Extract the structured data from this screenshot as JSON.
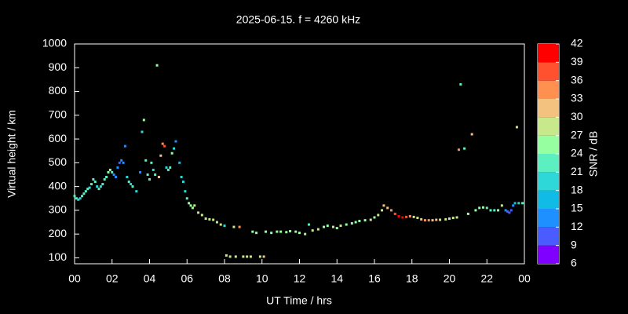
{
  "chart_data": {
    "type": "scatter",
    "title": "2025-06-15. f = 4260 kHz",
    "xlabel": "UT Time / hrs",
    "ylabel": "Virtual height / km",
    "xlim": [
      0,
      24
    ],
    "xticks": [
      {
        "value": 0,
        "label": "00"
      },
      {
        "value": 2,
        "label": "02"
      },
      {
        "value": 4,
        "label": "04"
      },
      {
        "value": 6,
        "label": "06"
      },
      {
        "value": 8,
        "label": "08"
      },
      10,
      12,
      14,
      16,
      18,
      20,
      22,
      {
        "value": 24,
        "label": "00"
      }
    ],
    "ylim": [
      75,
      1000
    ],
    "yticks": [
      100,
      200,
      300,
      400,
      500,
      600,
      700,
      800,
      900,
      1000
    ],
    "x": [
      0.0,
      0.1,
      0.2,
      0.3,
      0.4,
      0.5,
      0.6,
      0.7,
      0.8,
      0.9,
      1.0,
      1.1,
      1.2,
      1.3,
      1.4,
      1.5,
      1.6,
      1.7,
      1.8,
      1.9,
      2.0,
      2.1,
      2.2,
      2.3,
      2.4,
      2.5,
      2.6,
      2.7,
      2.8,
      2.9,
      3.0,
      3.1,
      3.3,
      3.5,
      3.6,
      3.7,
      3.8,
      3.9,
      4.0,
      4.1,
      4.2,
      4.3,
      4.4,
      4.5,
      4.6,
      4.7,
      4.8,
      4.9,
      5.0,
      5.1,
      5.2,
      5.3,
      5.4,
      5.6,
      5.7,
      5.8,
      5.9,
      6.0,
      6.1,
      6.2,
      6.3,
      6.4,
      6.6,
      6.8,
      7.0,
      7.2,
      7.4,
      7.6,
      7.8,
      8.0,
      8.1,
      8.3,
      8.5,
      8.6,
      8.8,
      9.0,
      9.2,
      9.4,
      9.5,
      9.7,
      9.9,
      10.1,
      10.2,
      10.5,
      10.8,
      11.0,
      11.3,
      11.5,
      11.8,
      12.0,
      12.3,
      12.5,
      12.7,
      13.0,
      13.3,
      13.5,
      13.8,
      14.0,
      14.2,
      14.5,
      14.8,
      15.0,
      15.2,
      15.5,
      15.8,
      16.0,
      16.2,
      16.4,
      16.5,
      16.7,
      16.9,
      17.1,
      17.3,
      17.5,
      17.7,
      17.9,
      18.1,
      18.3,
      18.5,
      18.7,
      18.9,
      19.1,
      19.3,
      19.5,
      19.8,
      20.0,
      20.2,
      20.4,
      20.5,
      20.6,
      20.8,
      21.0,
      21.2,
      21.4,
      21.6,
      21.8,
      22.0,
      22.2,
      22.4,
      22.6,
      22.8,
      23.0,
      23.1,
      23.2,
      23.3,
      23.4,
      23.5,
      23.6,
      23.7,
      23.9
    ],
    "y": [
      360,
      350,
      345,
      350,
      360,
      370,
      380,
      390,
      395,
      410,
      430,
      420,
      400,
      390,
      400,
      410,
      430,
      440,
      460,
      470,
      460,
      450,
      440,
      480,
      500,
      510,
      500,
      570,
      440,
      420,
      410,
      400,
      380,
      460,
      630,
      680,
      510,
      450,
      430,
      500,
      470,
      450,
      910,
      440,
      530,
      580,
      570,
      480,
      470,
      480,
      540,
      560,
      590,
      500,
      440,
      420,
      380,
      350,
      330,
      320,
      310,
      320,
      290,
      280,
      265,
      262,
      260,
      250,
      240,
      235,
      110,
      105,
      230,
      105,
      230,
      105,
      105,
      105,
      210,
      205,
      105,
      105,
      210,
      205,
      210,
      210,
      208,
      212,
      210,
      205,
      200,
      240,
      215,
      220,
      230,
      235,
      230,
      225,
      235,
      240,
      245,
      250,
      255,
      258,
      260,
      270,
      280,
      300,
      320,
      310,
      300,
      285,
      275,
      270,
      272,
      275,
      272,
      268,
      262,
      258,
      258,
      258,
      260,
      260,
      262,
      265,
      268,
      270,
      555,
      830,
      560,
      285,
      620,
      300,
      310,
      312,
      310,
      300,
      300,
      300,
      320,
      300,
      295,
      290,
      300,
      320,
      330,
      650,
      330,
      330
    ],
    "snr": [
      21,
      21,
      20,
      20,
      21,
      22,
      22,
      21,
      20,
      22,
      23,
      21,
      20,
      21,
      20,
      22,
      21,
      22,
      24,
      24,
      23,
      14,
      12,
      13,
      11,
      12,
      13,
      13,
      20,
      21,
      20,
      21,
      20,
      12,
      20,
      24,
      21,
      22,
      22,
      21,
      20,
      21,
      26,
      30,
      30,
      33,
      36,
      18,
      21,
      22,
      24,
      20,
      12,
      15,
      19,
      20,
      20,
      22,
      24,
      25,
      26,
      27,
      27,
      27,
      28,
      27,
      28,
      28,
      28,
      20,
      28,
      29,
      27,
      29,
      33,
      28,
      28,
      27,
      24,
      25,
      29,
      30,
      26,
      25,
      25,
      26,
      25,
      24,
      25,
      26,
      26,
      22,
      27,
      27,
      26,
      25,
      27,
      26,
      27,
      25,
      24,
      26,
      25,
      26,
      27,
      26,
      28,
      29,
      30,
      32,
      33,
      38,
      39,
      40,
      37,
      33,
      29,
      29,
      30,
      34,
      33,
      31,
      30,
      29,
      28,
      28,
      29,
      28,
      34,
      23,
      22,
      26,
      31,
      25,
      24,
      24,
      23,
      22,
      23,
      24,
      27,
      13,
      10,
      10,
      11,
      12,
      15,
      27,
      20,
      22
    ],
    "colorbar": {
      "label": "SNR / dB",
      "lim": [
        6,
        42
      ],
      "ticks": [
        6,
        9,
        12,
        15,
        18,
        21,
        24,
        27,
        30,
        33,
        36,
        39,
        42
      ],
      "colors": [
        "#8000ff",
        "#4a5cff",
        "#1e90ff",
        "#10bce6",
        "#2ed8d8",
        "#5cf0c0",
        "#96ffa0",
        "#c8e88c",
        "#f2c27e",
        "#ff9050",
        "#ff5030",
        "#ff0000"
      ]
    }
  }
}
